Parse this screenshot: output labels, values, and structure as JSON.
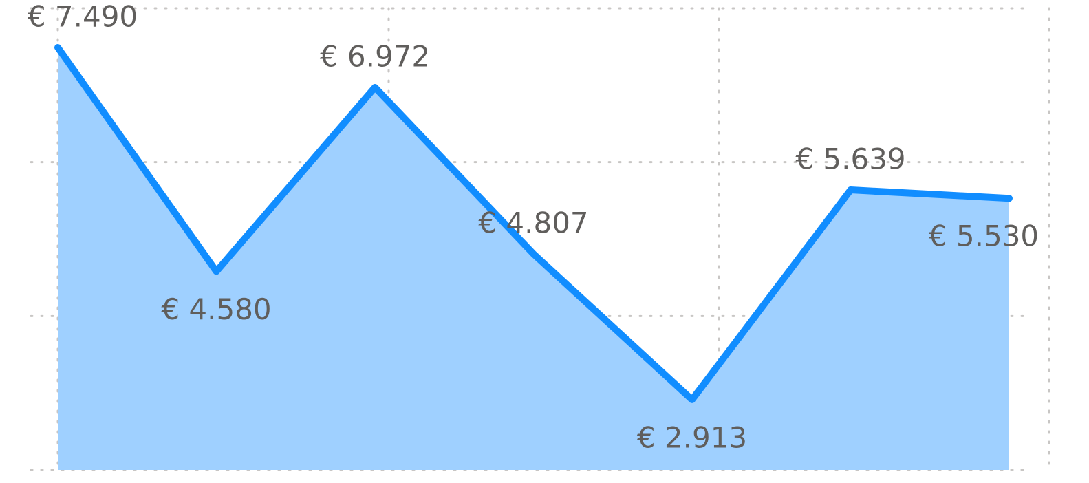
{
  "chart_data": {
    "type": "area",
    "categories": [
      null,
      null,
      null,
      null,
      null,
      null,
      null
    ],
    "series": [
      {
        "color": "#118dff",
        "values": [
          7490,
          4580,
          6972,
          4807,
          2913,
          5639,
          5530
        ],
        "value_labels": [
          "€ 7.490",
          "€ 4.580",
          "€ 6.972",
          "€ 4.807",
          "€ 2.913",
          "€ 5.639",
          "€ 5.530"
        ]
      }
    ],
    "ylim": [
      2000,
      8000
    ],
    "yticks": [
      2000,
      4000,
      6000,
      8000
    ],
    "grid": true
  }
}
